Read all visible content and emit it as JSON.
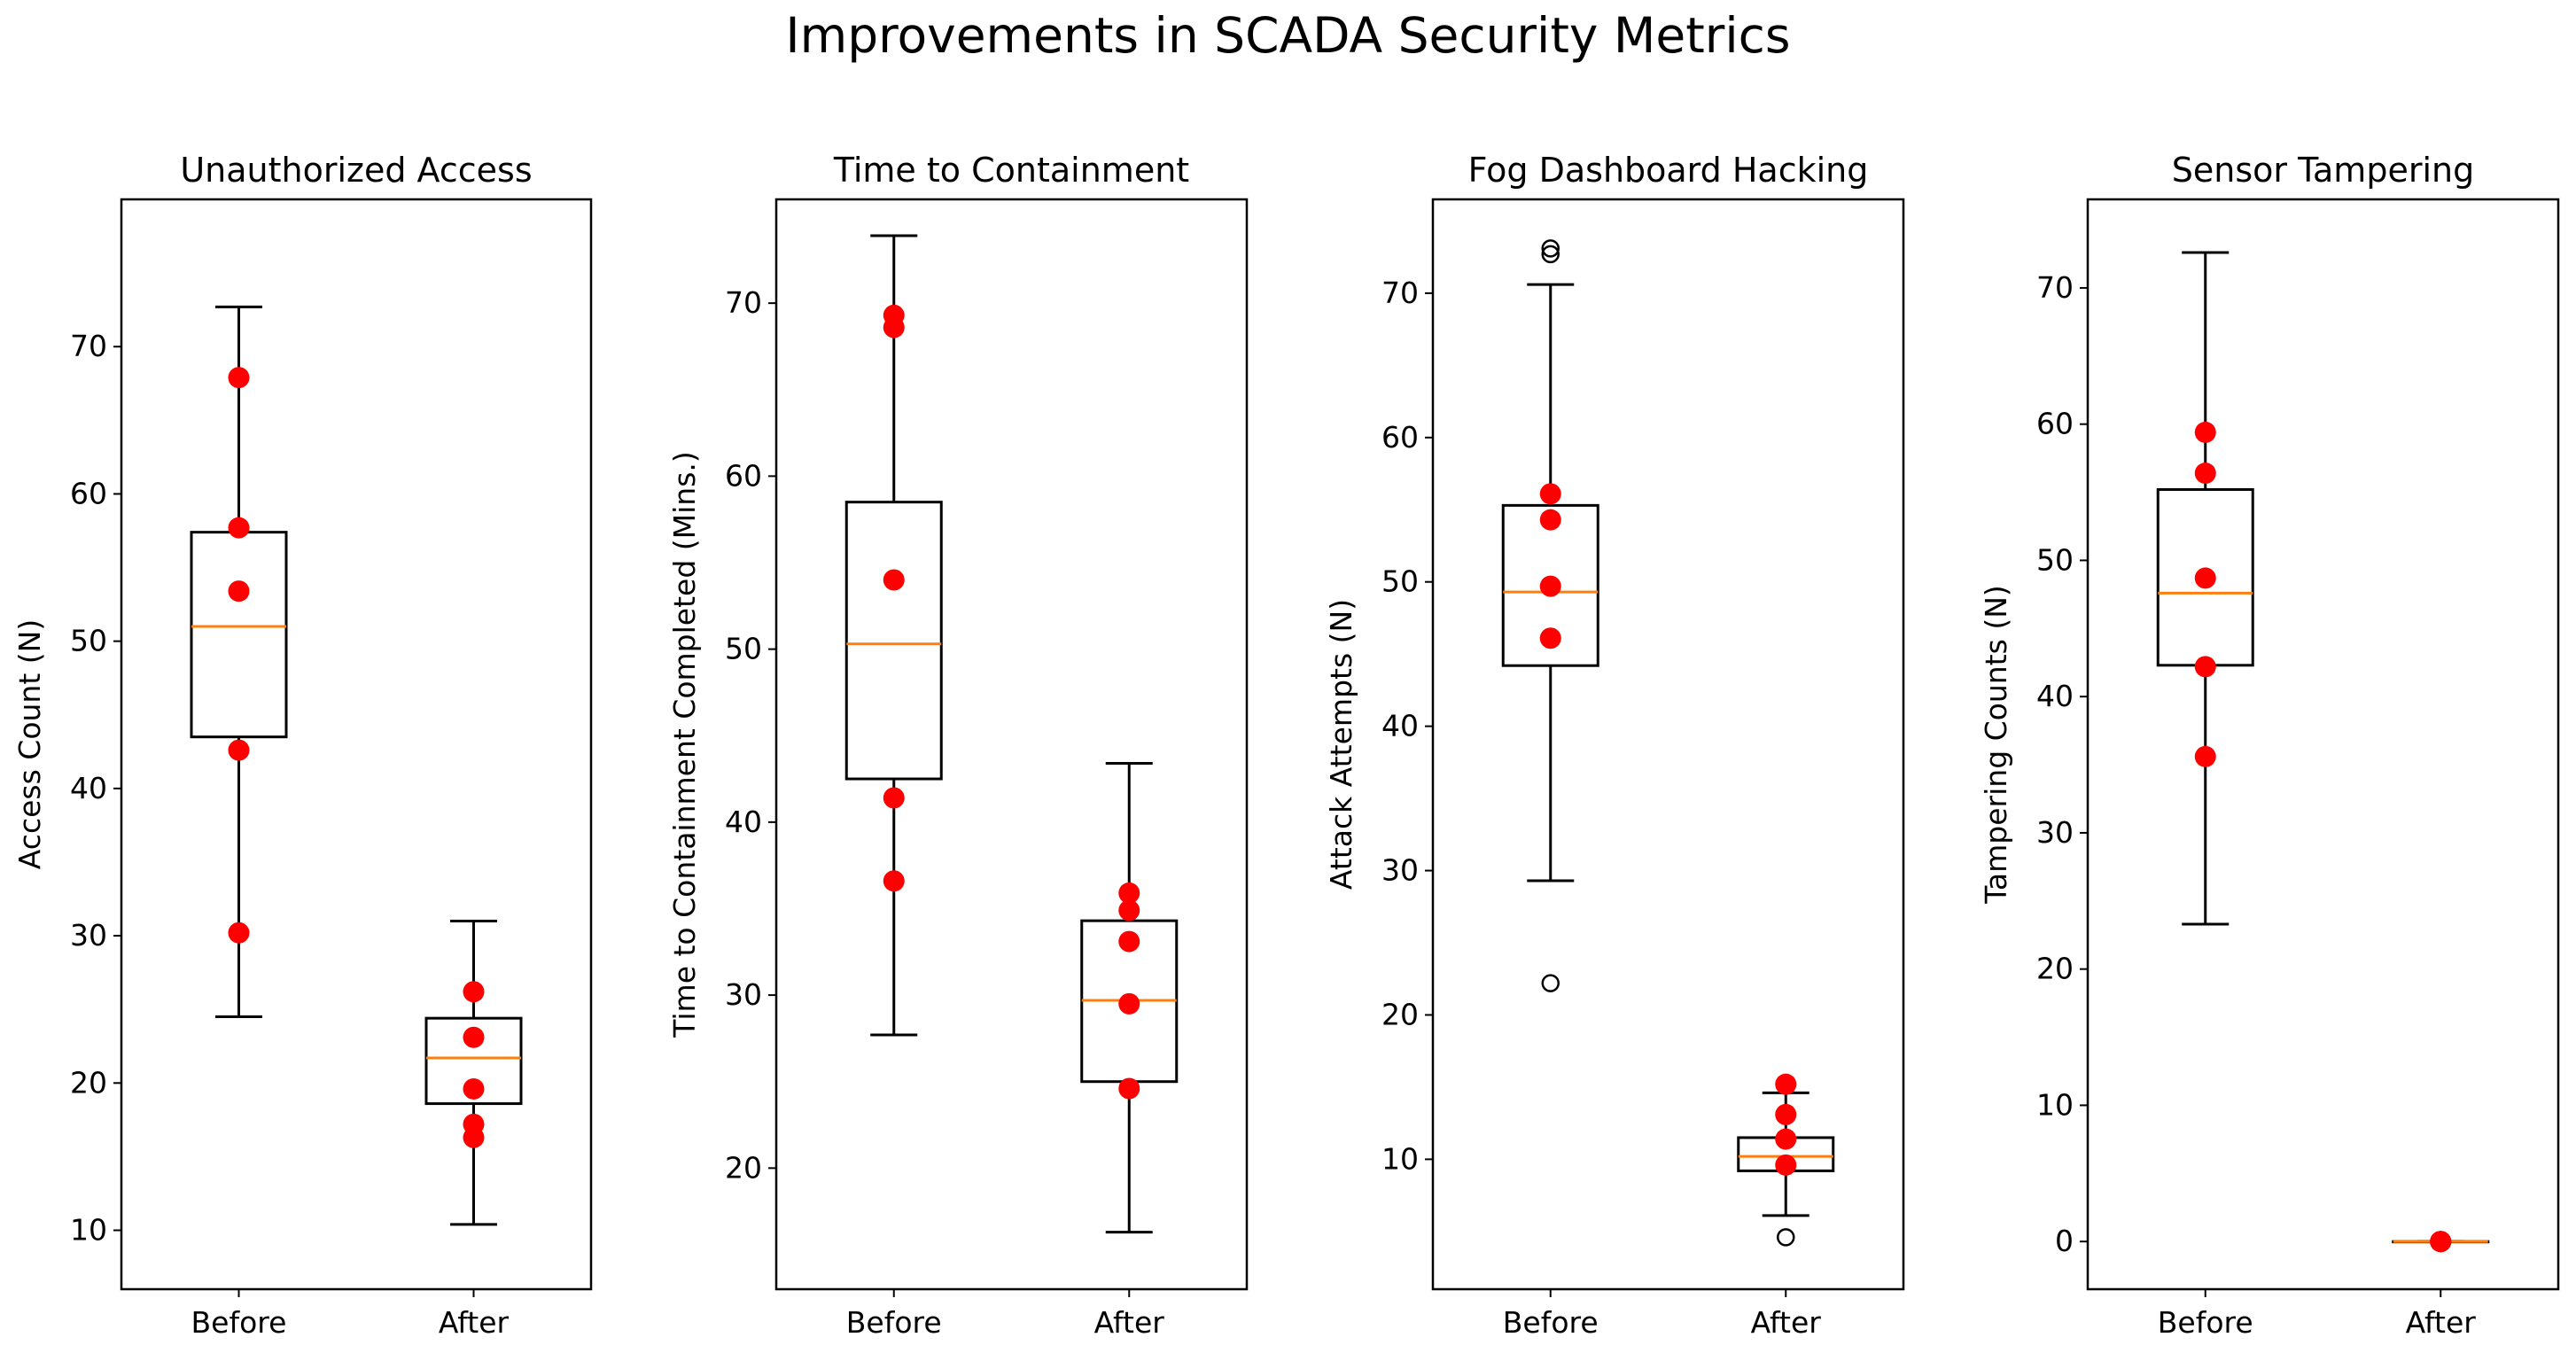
{
  "figure": {
    "title": "Improvements in SCADA Security Metrics"
  },
  "chart_data": [
    {
      "type": "box",
      "title": "Unauthorized Access",
      "xlabel": "",
      "ylabel": "Access Count (N)",
      "categories": [
        "Before",
        "After"
      ],
      "ylim": [
        6,
        80
      ],
      "yticks": [
        10,
        20,
        30,
        40,
        50,
        60,
        70
      ],
      "boxes": [
        {
          "label": "Before",
          "whislo": 24.5,
          "q1": 43.5,
          "med": 51.0,
          "q3": 57.4,
          "whishi": 72.7,
          "fliers": []
        },
        {
          "label": "After",
          "whislo": 10.4,
          "q1": 18.6,
          "med": 21.7,
          "q3": 24.4,
          "whishi": 31.0,
          "fliers": []
        }
      ],
      "points": [
        {
          "category": "Before",
          "values": [
            67.9,
            57.7,
            53.4,
            42.6,
            30.2
          ]
        },
        {
          "category": "After",
          "values": [
            26.2,
            23.1,
            19.6,
            17.2,
            16.3
          ]
        }
      ]
    },
    {
      "type": "box",
      "title": "Time to Containment",
      "xlabel": "",
      "ylabel": "Time to Containment Completed (Mins.)",
      "categories": [
        "Before",
        "After"
      ],
      "ylim": [
        13,
        76
      ],
      "yticks": [
        20,
        30,
        40,
        50,
        60,
        70
      ],
      "boxes": [
        {
          "label": "Before",
          "whislo": 27.7,
          "q1": 42.5,
          "med": 50.3,
          "q3": 58.5,
          "whishi": 73.9,
          "fliers": []
        },
        {
          "label": "After",
          "whislo": 16.3,
          "q1": 25.0,
          "med": 29.7,
          "q3": 34.3,
          "whishi": 43.4,
          "fliers": []
        }
      ],
      "points": [
        {
          "category": "Before",
          "values": [
            69.3,
            68.6,
            54.0,
            41.4,
            36.6
          ]
        },
        {
          "category": "After",
          "values": [
            35.9,
            34.9,
            33.1,
            29.5,
            24.6
          ]
        }
      ]
    },
    {
      "type": "box",
      "title": "Fog Dashboard Hacking",
      "xlabel": "",
      "ylabel": "Attack Attempts (N)",
      "categories": [
        "Before",
        "After"
      ],
      "ylim": [
        1,
        76.5
      ],
      "yticks": [
        10,
        20,
        30,
        40,
        50,
        60,
        70
      ],
      "boxes": [
        {
          "label": "Before",
          "whislo": 29.3,
          "q1": 44.2,
          "med": 49.3,
          "q3": 55.3,
          "whishi": 70.6,
          "fliers": [
            22.2,
            72.7,
            73.1
          ]
        },
        {
          "label": "After",
          "whislo": 6.1,
          "q1": 9.2,
          "med": 10.2,
          "q3": 11.5,
          "whishi": 14.6,
          "fliers": [
            4.6
          ]
        }
      ],
      "points": [
        {
          "category": "Before",
          "values": [
            56.1,
            54.3,
            49.7,
            46.1
          ]
        },
        {
          "category": "After",
          "values": [
            15.2,
            13.1,
            11.4,
            9.6
          ]
        }
      ]
    },
    {
      "type": "box",
      "title": "Sensor Tampering",
      "xlabel": "",
      "ylabel": "Tampering Counts (N)",
      "categories": [
        "Before",
        "After"
      ],
      "ylim": [
        -3.5,
        76.5
      ],
      "yticks": [
        0,
        10,
        20,
        30,
        40,
        50,
        60,
        70
      ],
      "boxes": [
        {
          "label": "Before",
          "whislo": 23.3,
          "q1": 42.3,
          "med": 47.6,
          "q3": 55.2,
          "whishi": 72.6,
          "fliers": []
        },
        {
          "label": "After",
          "whislo": 0,
          "q1": 0,
          "med": 0,
          "q3": 0,
          "whishi": 0,
          "fliers": []
        }
      ],
      "points": [
        {
          "category": "Before",
          "values": [
            59.4,
            56.4,
            48.7,
            42.2,
            35.6
          ]
        },
        {
          "category": "After",
          "values": [
            0,
            0,
            0,
            0,
            0
          ]
        }
      ]
    }
  ],
  "colors": {
    "median": "#ff7f0e",
    "points": "#ff0000",
    "box": "#000000"
  }
}
